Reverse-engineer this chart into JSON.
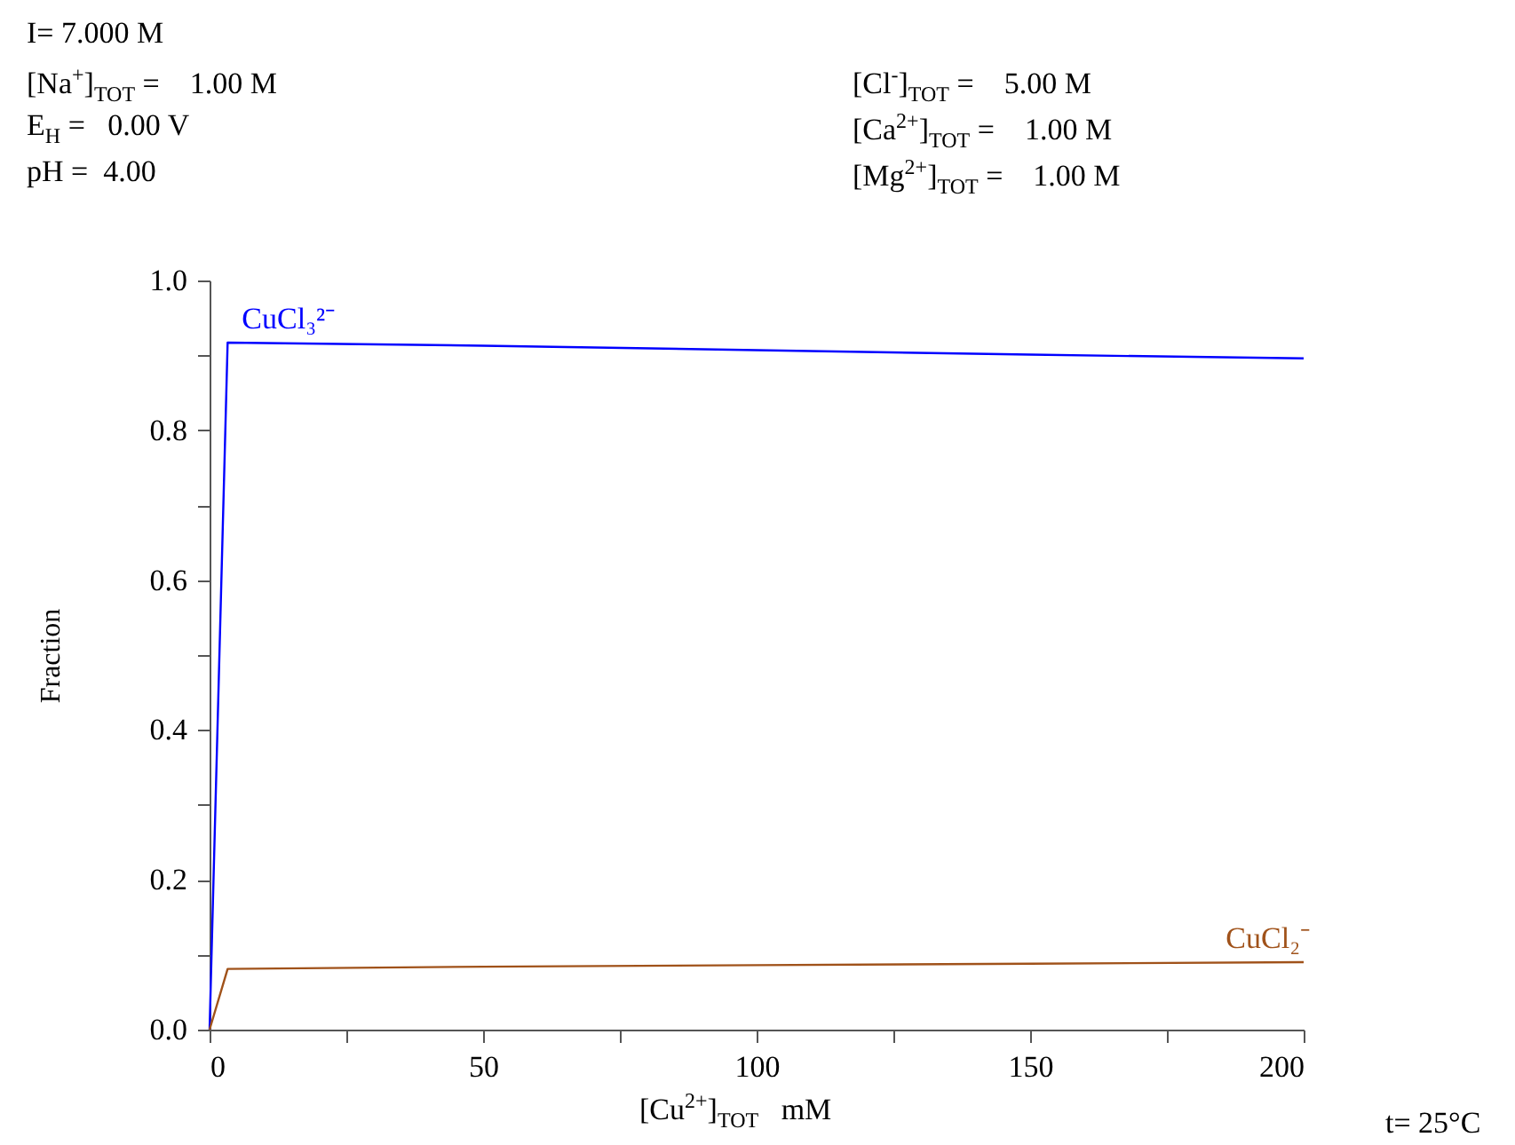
{
  "chart_data": {
    "type": "line",
    "xlabel": "[Cu$^{2+}$]$_{TOT}$   mM",
    "ylabel": "Fraction",
    "annotations": [
      "I= 7.000 M",
      "[Na$^{+}$]$_{TOT}$ =    1.00 M",
      "E$_{H}$ =   0.00 V",
      "pH =  4.00",
      "[Cl$^{-}$]$_{TOT}$ =    5.00 M",
      "[Ca$^{2+}$]$_{TOT}$ =    1.00 M",
      "[Mg$^{2+}$]$_{TOT}$ =    1.00 M",
      "t= 25°C"
    ],
    "series": [
      {
        "name": "CuCl₃²⁻",
        "color": "#0000ff",
        "x": [
          0,
          3.3,
          50,
          100,
          150,
          200
        ],
        "values": [
          0,
          0.917,
          0.913,
          0.907,
          0.901,
          0.896
        ]
      },
      {
        "name": "CuCl₂⁻",
        "color": "#a0521a",
        "x": [
          0,
          3.3,
          50,
          100,
          150,
          200
        ],
        "values": [
          0,
          0.081,
          0.084,
          0.086,
          0.088,
          0.09
        ]
      }
    ],
    "xlim": [
      0,
      200
    ],
    "ylim": [
      0,
      1
    ],
    "xticks": [
      0,
      {
        "value": 25,
        "label": null
      },
      50,
      {
        "value": 75,
        "label": null
      },
      100,
      {
        "value": 125,
        "label": null
      },
      150,
      {
        "value": 175,
        "label": null
      },
      200
    ],
    "yticks": [
      {
        "value": 0,
        "label": "0.0"
      },
      {
        "value": 0.1,
        "label": null
      },
      0.2,
      {
        "value": 0.3,
        "label": null
      },
      0.4,
      {
        "value": 0.5,
        "label": null
      },
      0.6,
      {
        "value": 0.7,
        "label": null
      },
      0.8,
      {
        "value": 0.9,
        "label": null
      },
      {
        "value": 1,
        "label": "1.0"
      }
    ],
    "grid": false,
    "legend": false,
    "marker": "none",
    "line_style": "solid"
  }
}
